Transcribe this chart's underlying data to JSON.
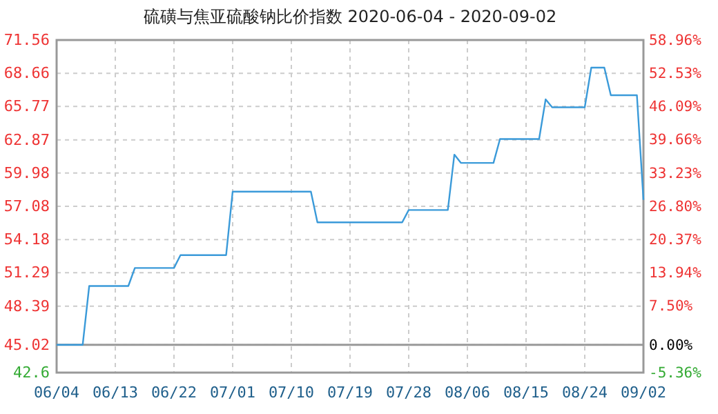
{
  "chart_data": {
    "type": "line",
    "title": "硫磺与焦亚硫酸钠比价指数 2020-06-04 - 2020-09-02",
    "x": [
      "2020-06-04",
      "2020-06-08",
      "2020-06-09",
      "2020-06-15",
      "2020-06-16",
      "2020-06-22",
      "2020-06-23",
      "2020-06-30",
      "2020-07-01",
      "2020-07-13",
      "2020-07-14",
      "2020-07-27",
      "2020-07-28",
      "2020-08-03",
      "2020-08-04",
      "2020-08-05",
      "2020-08-10",
      "2020-08-11",
      "2020-08-17",
      "2020-08-18",
      "2020-08-19",
      "2020-08-24",
      "2020-08-25",
      "2020-08-27",
      "2020-08-28",
      "2020-09-01",
      "2020-09-02"
    ],
    "series": [
      {
        "color": "#3a9ad9",
        "values": [
          45.02,
          45.02,
          50.14,
          50.14,
          51.71,
          51.71,
          52.83,
          52.83,
          58.36,
          58.36,
          55.68,
          55.68,
          56.76,
          56.76,
          61.58,
          60.86,
          60.86,
          62.94,
          62.94,
          66.39,
          65.7,
          65.7,
          69.16,
          69.16,
          66.75,
          66.75,
          57.64
        ]
      }
    ],
    "xlim": [
      "2020-06-04",
      "2020-09-02"
    ],
    "xticks": [
      {
        "value": "2020-06-04",
        "label": "06/04"
      },
      {
        "value": "2020-06-13",
        "label": "06/13"
      },
      {
        "value": "2020-06-22",
        "label": "06/22"
      },
      {
        "value": "2020-07-01",
        "label": "07/01"
      },
      {
        "value": "2020-07-10",
        "label": "07/10"
      },
      {
        "value": "2020-07-19",
        "label": "07/19"
      },
      {
        "value": "2020-07-28",
        "label": "07/28"
      },
      {
        "value": "2020-08-06",
        "label": "08/06"
      },
      {
        "value": "2020-08-15",
        "label": "08/15"
      },
      {
        "value": "2020-08-24",
        "label": "08/24"
      },
      {
        "value": "2020-09-02",
        "label": "09/02"
      }
    ],
    "ylim": [
      42.6,
      71.56
    ],
    "yticks": [
      42.6,
      45.02,
      48.39,
      51.29,
      54.18,
      57.08,
      59.98,
      62.87,
      65.77,
      68.66,
      71.56
    ],
    "y2lim": [
      -5.36,
      58.96
    ],
    "y2ticks": [
      {
        "value": -5.36,
        "label": "-5.36%"
      },
      {
        "value": 0,
        "label": "0.00%"
      },
      {
        "value": 7.5,
        "label": "7.50%"
      },
      {
        "value": 13.94,
        "label": "13.94%"
      },
      {
        "value": 20.37,
        "label": "20.37%"
      },
      {
        "value": 26.8,
        "label": "26.80%"
      },
      {
        "value": 33.23,
        "label": "33.23%"
      },
      {
        "value": 39.66,
        "label": "39.66%"
      },
      {
        "value": 46.09,
        "label": "46.09%"
      },
      {
        "value": 52.53,
        "label": "52.53%"
      },
      {
        "value": 58.96,
        "label": "58.96%"
      }
    ],
    "ref_lines": [
      {
        "axis": "y",
        "value": 45.02,
        "color": "#999999"
      }
    ],
    "grid": true,
    "line_style": "solid",
    "marker": "none"
  }
}
